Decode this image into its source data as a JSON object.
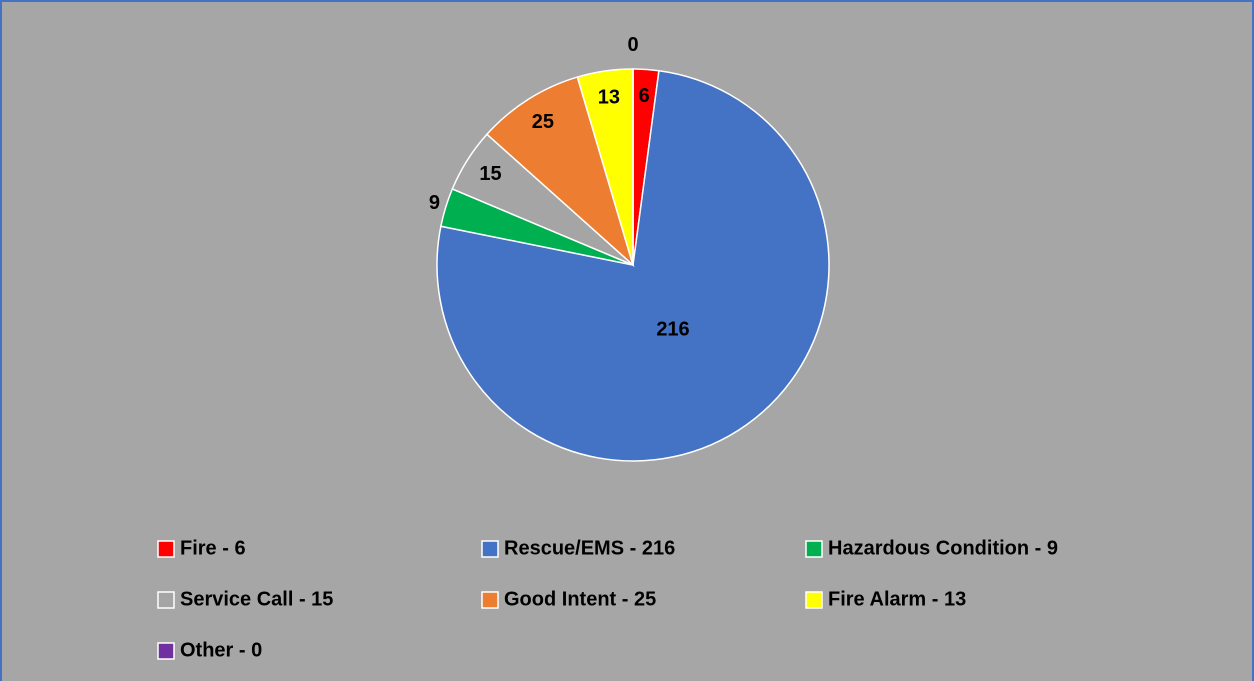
{
  "chart_data": {
    "type": "pie",
    "categories": [
      "Fire - 6",
      "Rescue/EMS - 216",
      "Hazardous Condition - 9",
      "Service Call - 15",
      "Good Intent - 25",
      "Fire Alarm - 13",
      "Other - 0"
    ],
    "values": [
      6,
      216,
      9,
      15,
      25,
      13,
      0
    ],
    "colors": [
      "#ff0000",
      "#4472c4",
      "#00b050",
      "#a5a5a5",
      "#ed7d31",
      "#ffff00",
      "#7030a0"
    ],
    "legend": "bottom"
  }
}
